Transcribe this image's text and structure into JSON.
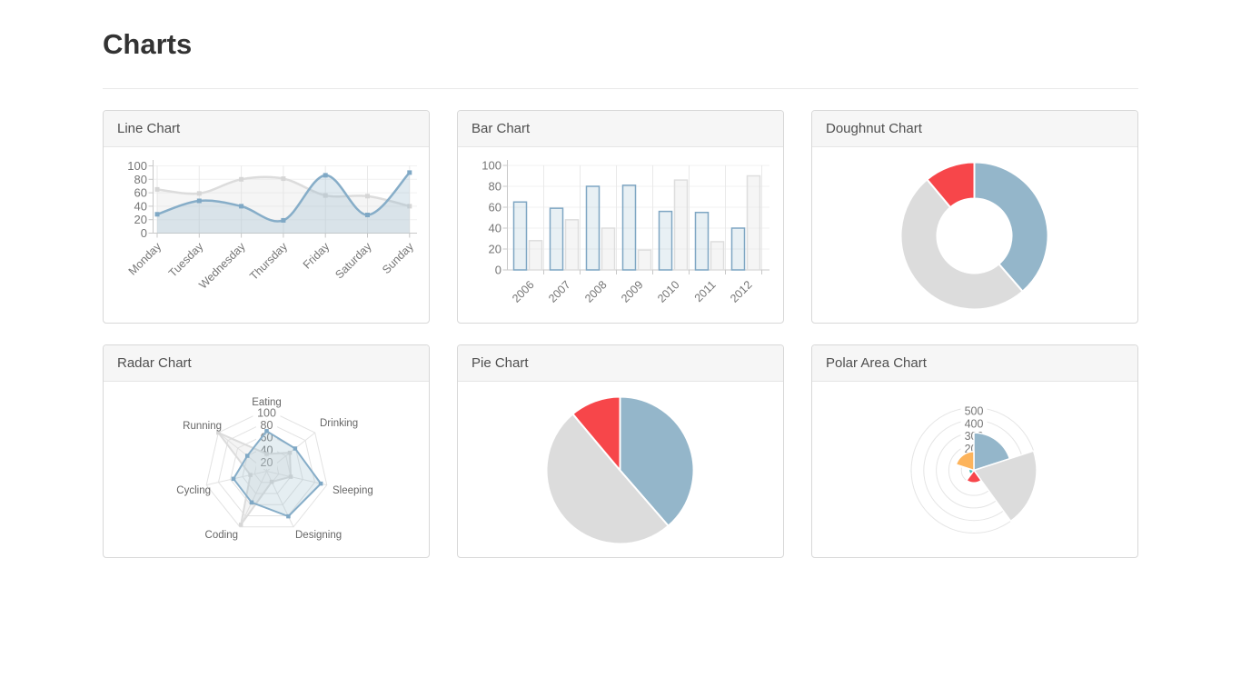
{
  "page": {
    "title": "Charts"
  },
  "panels": [
    {
      "id": "line",
      "title": "Line Chart"
    },
    {
      "id": "bar",
      "title": "Bar Chart"
    },
    {
      "id": "doughnut",
      "title": "Doughnut Chart"
    },
    {
      "id": "radar",
      "title": "Radar Chart"
    },
    {
      "id": "pie",
      "title": "Pie Chart"
    },
    {
      "id": "polar",
      "title": "Polar Area Chart"
    }
  ],
  "chart_data": [
    {
      "id": "line",
      "type": "line",
      "title": "Line Chart",
      "categories": [
        "Monday",
        "Tuesday",
        "Wednesday",
        "Thursday",
        "Friday",
        "Saturday",
        "Sunday"
      ],
      "yticks": [
        0,
        20,
        40,
        60,
        80,
        100
      ],
      "ylim": [
        0,
        100
      ],
      "xlabel": "",
      "ylabel": "",
      "grid": true,
      "legend": "none",
      "series": [
        {
          "name": "gray",
          "values": [
            65,
            59,
            80,
            81,
            56,
            55,
            40
          ],
          "stroke": "#DCDCDC",
          "fill": "rgba(220,220,220,0.28)",
          "point": "#D6D6D6"
        },
        {
          "name": "blue",
          "values": [
            28,
            48,
            40,
            19,
            86,
            27,
            90
          ],
          "stroke": "#86ADC8",
          "fill": "rgba(151,187,205,0.30)",
          "point": "#7FA8C5"
        }
      ]
    },
    {
      "id": "bar",
      "type": "bar",
      "title": "Bar Chart",
      "categories": [
        "2006",
        "2007",
        "2008",
        "2009",
        "2010",
        "2011",
        "2012"
      ],
      "yticks": [
        0,
        20,
        40,
        60,
        80,
        100
      ],
      "ylim": [
        0,
        100
      ],
      "xlabel": "",
      "ylabel": "",
      "grid": true,
      "legend": "none",
      "series": [
        {
          "name": "blue",
          "values": [
            65,
            59,
            80,
            81,
            56,
            55,
            40
          ],
          "fill": "rgba(151,187,205,0.22)",
          "stroke": "#7EA6C3"
        },
        {
          "name": "gray",
          "values": [
            28,
            48,
            40,
            19,
            86,
            27,
            90
          ],
          "fill": "rgba(233,233,233,0.45)",
          "stroke": "#DEDEDE"
        }
      ]
    },
    {
      "id": "doughnut",
      "type": "doughnut",
      "title": "Doughnut Chart",
      "cutout_pct": 50,
      "segments": [
        {
          "name": "blue",
          "color": "#94B6CA",
          "angle_deg": 139
        },
        {
          "name": "gray",
          "color": "#DCDCDC",
          "angle_deg": 181
        },
        {
          "name": "red",
          "color": "#F7464A",
          "angle_deg": 40
        }
      ]
    },
    {
      "id": "radar",
      "type": "radar",
      "title": "Radar Chart",
      "categories": [
        "Eating",
        "Drinking",
        "Sleeping",
        "Designing",
        "Coding",
        "Cycling",
        "Running"
      ],
      "ticks": [
        20,
        40,
        60,
        80,
        100
      ],
      "ylim": [
        0,
        100
      ],
      "series": [
        {
          "name": "gray",
          "values": [
            28,
            48,
            40,
            19,
            96,
            27,
            100
          ],
          "stroke": "#DCDCDC",
          "fill": "rgba(220,220,220,0.30)",
          "point": "#D6D6D6"
        },
        {
          "name": "blue",
          "values": [
            65,
            59,
            90,
            81,
            56,
            55,
            40
          ],
          "stroke": "#86ADC8",
          "fill": "rgba(151,187,205,0.25)",
          "point": "#7FA8C5"
        }
      ]
    },
    {
      "id": "pie",
      "type": "pie",
      "title": "Pie Chart",
      "segments": [
        {
          "name": "blue",
          "color": "#94B6CA",
          "angle_deg": 139
        },
        {
          "name": "gray",
          "color": "#DCDCDC",
          "angle_deg": 181
        },
        {
          "name": "red",
          "color": "#F7464A",
          "angle_deg": 40
        }
      ]
    },
    {
      "id": "polar",
      "type": "polarArea",
      "title": "Polar Area Chart",
      "ticks": [
        100,
        200,
        300,
        400,
        500
      ],
      "rlim": [
        0,
        500
      ],
      "segments": [
        {
          "name": "blue",
          "color": "#94B6CA",
          "value": 300
        },
        {
          "name": "gray",
          "color": "#DCDCDC",
          "value": 500
        },
        {
          "name": "red",
          "color": "#F7464A",
          "value": 100
        },
        {
          "name": "teal",
          "color": "#46BFBD",
          "value": 40
        },
        {
          "name": "orange",
          "color": "#FDB45C",
          "value": 150
        }
      ]
    }
  ]
}
